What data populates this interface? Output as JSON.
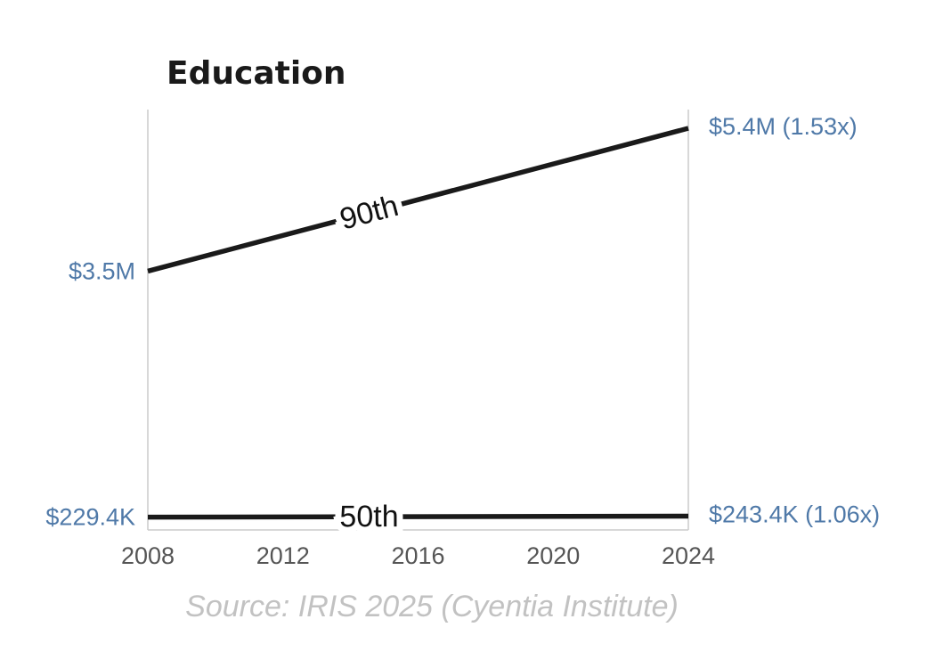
{
  "chart_data": {
    "type": "line",
    "title": "Education",
    "x": [
      2008,
      2024
    ],
    "xticks": [
      "2008",
      "2012",
      "2016",
      "2020",
      "2024"
    ],
    "xlim": [
      2008,
      2024
    ],
    "ylim": [
      0,
      5400000
    ],
    "series": [
      {
        "name": "90th",
        "values": [
          3500000,
          5400000
        ],
        "start_label": "$3.5M",
        "end_label": "$5.4M (1.53x)"
      },
      {
        "name": "50th",
        "values": [
          229400,
          243400
        ],
        "start_label": "$229.4K",
        "end_label": "$243.4K (1.06x)"
      }
    ],
    "source": "Source: IRIS 2025 (Cyentia Institute)",
    "colors": {
      "line": "#1a1a1a",
      "value_label": "#4f79a8",
      "source": "#c2c2c2",
      "frame": "#cccccc"
    },
    "grid": false
  }
}
